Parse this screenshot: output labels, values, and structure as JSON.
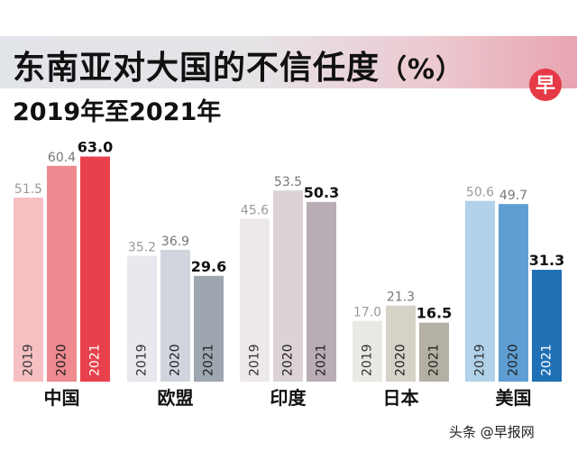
{
  "header": {
    "title": "东南亚对大国的不信任度",
    "title_unit": "（%）",
    "subtitle": "2019年至2021年"
  },
  "logo": {
    "glyph": "早",
    "color": "#e63946"
  },
  "watermark": "头条 @早报网",
  "chart_data": {
    "type": "bar",
    "title": "东南亚对大国的不信任度（%）",
    "subtitle": "2019年至2021年",
    "ylim": [
      0,
      70
    ],
    "grid": false,
    "groups": [
      {
        "name": "中国",
        "years": [
          "2019",
          "2020",
          "2021"
        ],
        "values": [
          51.5,
          60.4,
          63.0
        ],
        "labels": [
          "51.5",
          "60.4",
          "63.0"
        ],
        "colors": [
          "#f6c0c3",
          "#ef8a90",
          "#e8414b"
        ],
        "label_colors": [
          "#999999",
          "#777777",
          "#111111"
        ],
        "year_colors": [
          "#333333",
          "#222222",
          "#ffffff"
        ]
      },
      {
        "name": "欧盟",
        "years": [
          "2019",
          "2020",
          "2021"
        ],
        "values": [
          35.2,
          36.9,
          29.6
        ],
        "labels": [
          "35.2",
          "36.9",
          "29.6"
        ],
        "colors": [
          "#e7e9ee",
          "#d0d5dd",
          "#9ea6b0"
        ],
        "label_colors": [
          "#999999",
          "#777777",
          "#111111"
        ],
        "year_colors": [
          "#333333",
          "#222222",
          "#222222"
        ]
      },
      {
        "name": "印度",
        "years": [
          "2019",
          "2020",
          "2021"
        ],
        "values": [
          45.6,
          53.5,
          50.3
        ],
        "labels": [
          "45.6",
          "53.5",
          "50.3"
        ],
        "colors": [
          "#ece8ec",
          "#dcd3d9",
          "#b8adb5"
        ],
        "label_colors": [
          "#999999",
          "#777777",
          "#111111"
        ],
        "year_colors": [
          "#333333",
          "#222222",
          "#222222"
        ]
      },
      {
        "name": "日本",
        "years": [
          "2019",
          "2020",
          "2021"
        ],
        "values": [
          17.0,
          21.3,
          16.5
        ],
        "labels": [
          "17.0",
          "21.3",
          "16.5"
        ],
        "colors": [
          "#eae8e4",
          "#d5d2c8",
          "#b4b0a3"
        ],
        "label_colors": [
          "#999999",
          "#777777",
          "#111111"
        ],
        "year_colors": [
          "#333333",
          "#222222",
          "#222222"
        ]
      },
      {
        "name": "美国",
        "years": [
          "2019",
          "2020",
          "2021"
        ],
        "values": [
          50.6,
          49.7,
          31.3
        ],
        "labels": [
          "50.6",
          "49.7",
          "31.3"
        ],
        "colors": [
          "#b2d2ea",
          "#5e9ed3",
          "#1f70b5"
        ],
        "label_colors": [
          "#999999",
          "#777777",
          "#111111"
        ],
        "year_colors": [
          "#333333",
          "#222222",
          "#ffffff"
        ]
      }
    ]
  }
}
